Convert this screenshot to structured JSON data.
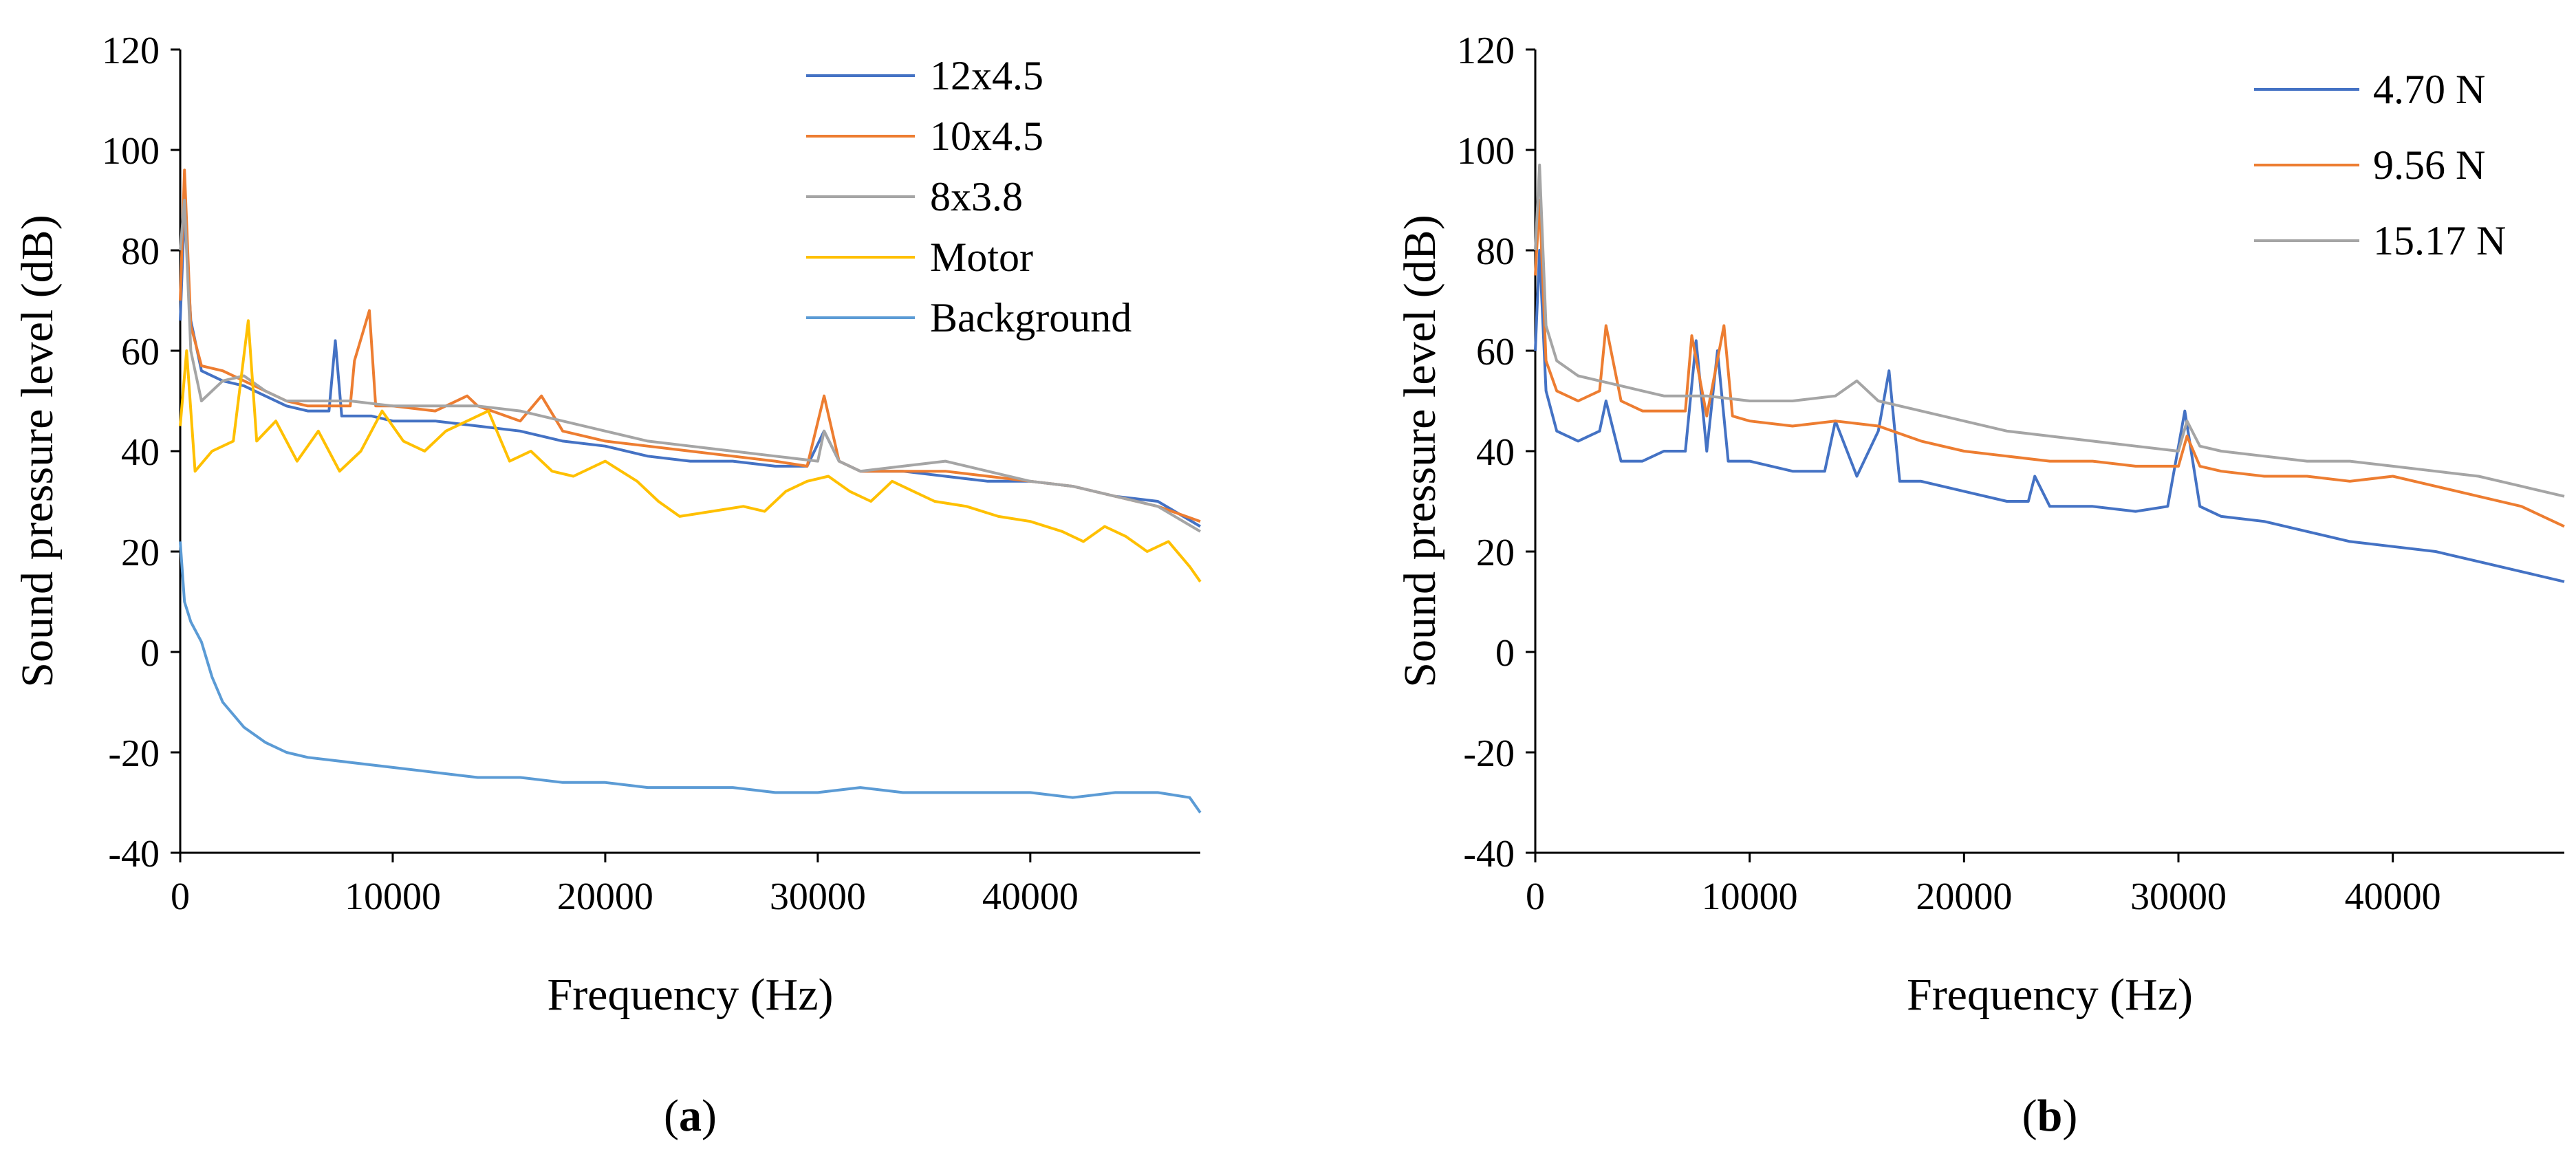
{
  "chart_data": [
    {
      "type": "line",
      "panel_label": "a",
      "xlabel": "Frequency (Hz)",
      "ylabel": "Sound pressure level (dB)",
      "xlim": [
        0,
        48000
      ],
      "ylim": [
        -40,
        120
      ],
      "xticks": [
        0,
        10000,
        20000,
        30000,
        40000
      ],
      "yticks": [
        -40,
        -20,
        0,
        20,
        40,
        60,
        80,
        100,
        120
      ],
      "legend_position": "top-right",
      "series": [
        {
          "name": "12x4.5",
          "color": "#4472c4",
          "x": [
            0,
            200,
            500,
            1000,
            2000,
            3000,
            4000,
            5000,
            6000,
            7000,
            7300,
            7600,
            8000,
            9000,
            10000,
            12000,
            14000,
            16000,
            18000,
            20000,
            22000,
            24000,
            26000,
            28000,
            29500,
            30300,
            31000,
            32000,
            34000,
            36000,
            38000,
            40000,
            42000,
            44000,
            46000,
            48000
          ],
          "y": [
            66,
            88,
            66,
            56,
            54,
            53,
            51,
            49,
            48,
            48,
            62,
            47,
            47,
            47,
            46,
            46,
            45,
            44,
            42,
            41,
            39,
            38,
            38,
            37,
            37,
            44,
            38,
            36,
            36,
            35,
            34,
            34,
            33,
            31,
            30,
            25
          ]
        },
        {
          "name": "10x4.5",
          "color": "#ed7d31",
          "x": [
            0,
            200,
            500,
            1000,
            2000,
            3000,
            4000,
            5000,
            6000,
            7000,
            8000,
            8200,
            8900,
            9200,
            10000,
            12000,
            13500,
            14000,
            16000,
            17000,
            18000,
            20000,
            22000,
            24000,
            26000,
            28000,
            29500,
            30300,
            31000,
            32000,
            34000,
            36000,
            38000,
            40000,
            42000,
            44000,
            46000,
            48000
          ],
          "y": [
            70,
            96,
            65,
            57,
            56,
            54,
            52,
            50,
            49,
            49,
            49,
            58,
            68,
            49,
            49,
            48,
            51,
            49,
            46,
            51,
            44,
            42,
            41,
            40,
            39,
            38,
            37,
            51,
            38,
            36,
            36,
            36,
            35,
            34,
            33,
            31,
            29,
            26
          ]
        },
        {
          "name": "8x3.8",
          "color": "#a5a5a5",
          "x": [
            0,
            200,
            500,
            1000,
            2000,
            3000,
            4000,
            5000,
            6000,
            8000,
            10000,
            12000,
            14000,
            16000,
            18000,
            20000,
            22000,
            24000,
            26000,
            28000,
            30000,
            30300,
            31000,
            32000,
            34000,
            36000,
            38000,
            40000,
            42000,
            44000,
            46000,
            48000
          ],
          "y": [
            80,
            90,
            60,
            50,
            54,
            55,
            52,
            50,
            50,
            50,
            49,
            49,
            49,
            48,
            46,
            44,
            42,
            41,
            40,
            39,
            38,
            44,
            38,
            36,
            37,
            38,
            36,
            34,
            33,
            31,
            29,
            24
          ]
        },
        {
          "name": "Motor",
          "color": "#ffc000",
          "x": [
            0,
            300,
            700,
            1500,
            2500,
            3200,
            3600,
            4500,
            5500,
            6500,
            7500,
            8500,
            9500,
            10500,
            11500,
            12500,
            13500,
            14500,
            15500,
            16500,
            17500,
            18500,
            20000,
            21500,
            22500,
            23500,
            25000,
            26500,
            27500,
            28500,
            29500,
            30500,
            31500,
            32500,
            33500,
            34500,
            35500,
            37000,
            38500,
            40000,
            41500,
            42500,
            43500,
            44500,
            45500,
            46500,
            47500,
            48000
          ],
          "y": [
            45,
            60,
            36,
            40,
            42,
            66,
            42,
            46,
            38,
            44,
            36,
            40,
            48,
            42,
            40,
            44,
            46,
            48,
            38,
            40,
            36,
            35,
            38,
            34,
            30,
            27,
            28,
            29,
            28,
            32,
            34,
            35,
            32,
            30,
            34,
            32,
            30,
            29,
            27,
            26,
            24,
            22,
            25,
            23,
            20,
            22,
            17,
            14
          ]
        },
        {
          "name": "Background",
          "color": "#5b9bd5",
          "x": [
            0,
            200,
            500,
            1000,
            1500,
            2000,
            3000,
            4000,
            5000,
            6000,
            8000,
            10000,
            12000,
            14000,
            16000,
            18000,
            20000,
            22000,
            24000,
            26000,
            28000,
            30000,
            32000,
            34000,
            36000,
            38000,
            40000,
            42000,
            44000,
            46000,
            47500,
            48000
          ],
          "y": [
            22,
            10,
            6,
            2,
            -5,
            -10,
            -15,
            -18,
            -20,
            -21,
            -22,
            -23,
            -24,
            -25,
            -25,
            -26,
            -26,
            -27,
            -27,
            -27,
            -28,
            -28,
            -27,
            -28,
            -28,
            -28,
            -28,
            -29,
            -28,
            -28,
            -29,
            -32
          ]
        }
      ]
    },
    {
      "type": "line",
      "panel_label": "b",
      "xlabel": "Frequency (Hz)",
      "ylabel": "Sound pressure level (dB)",
      "xlim": [
        0,
        48000
      ],
      "ylim": [
        -40,
        120
      ],
      "xticks": [
        0,
        10000,
        20000,
        30000,
        40000
      ],
      "yticks": [
        -40,
        -20,
        0,
        20,
        40,
        60,
        80,
        100,
        120
      ],
      "legend_position": "top-right",
      "series": [
        {
          "name": "4.70 N",
          "color": "#4472c4",
          "x": [
            0,
            200,
            500,
            1000,
            2000,
            3000,
            3300,
            4000,
            5000,
            6000,
            7000,
            7500,
            8000,
            8500,
            9000,
            10000,
            12000,
            13500,
            14000,
            15000,
            16000,
            16500,
            17000,
            18000,
            20000,
            22000,
            23000,
            23300,
            24000,
            26000,
            28000,
            29500,
            30300,
            31000,
            32000,
            34000,
            36000,
            38000,
            40000,
            42000,
            44000,
            46000,
            48000
          ],
          "y": [
            60,
            80,
            52,
            44,
            42,
            44,
            50,
            38,
            38,
            40,
            40,
            62,
            40,
            60,
            38,
            38,
            36,
            36,
            46,
            35,
            44,
            56,
            34,
            34,
            32,
            30,
            30,
            35,
            29,
            29,
            28,
            29,
            48,
            29,
            27,
            26,
            24,
            22,
            21,
            20,
            18,
            16,
            14
          ]
        },
        {
          "name": "9.56 N",
          "color": "#ed7d31",
          "x": [
            0,
            200,
            500,
            1000,
            2000,
            3000,
            3300,
            4000,
            5000,
            6000,
            7000,
            7300,
            8000,
            8800,
            9200,
            10000,
            12000,
            14000,
            16000,
            18000,
            20000,
            22000,
            24000,
            26000,
            28000,
            30000,
            30400,
            31000,
            32000,
            34000,
            36000,
            38000,
            40000,
            42000,
            44000,
            46000,
            48000
          ],
          "y": [
            75,
            90,
            58,
            52,
            50,
            52,
            65,
            50,
            48,
            48,
            48,
            63,
            47,
            65,
            47,
            46,
            45,
            46,
            45,
            42,
            40,
            39,
            38,
            38,
            37,
            37,
            43,
            37,
            36,
            35,
            35,
            34,
            35,
            33,
            31,
            29,
            25
          ]
        },
        {
          "name": "15.17 N",
          "color": "#a5a5a5",
          "x": [
            0,
            200,
            500,
            1000,
            2000,
            3000,
            4000,
            5000,
            6000,
            8000,
            10000,
            12000,
            14000,
            15000,
            16000,
            18000,
            20000,
            22000,
            24000,
            26000,
            28000,
            30000,
            30400,
            31000,
            32000,
            34000,
            36000,
            38000,
            40000,
            42000,
            44000,
            46000,
            48000
          ],
          "y": [
            80,
            97,
            65,
            58,
            55,
            54,
            53,
            52,
            51,
            51,
            50,
            50,
            51,
            54,
            50,
            48,
            46,
            44,
            43,
            42,
            41,
            40,
            46,
            41,
            40,
            39,
            38,
            38,
            37,
            36,
            35,
            33,
            31
          ]
        }
      ]
    }
  ]
}
